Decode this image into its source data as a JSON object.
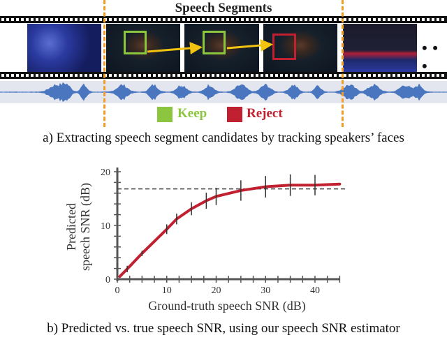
{
  "figure_a": {
    "title": "Speech Segments",
    "ellipsis": "• • •",
    "legend": [
      {
        "label": "Keep",
        "color": "#8cc63f"
      },
      {
        "label": "Reject",
        "color": "#c0202f"
      }
    ],
    "caption": "a) Extracting speech segment candidates by tracking speakers’ faces"
  },
  "figure_b": {
    "caption": "b) Predicted vs. true speech SNR, using our speech SNR estimator"
  },
  "chart_data": {
    "type": "line",
    "title": "",
    "xlabel": "Ground-truth speech SNR (dB)",
    "ylabel_line1": "Predicted",
    "ylabel_line2": "speech SNR (dB)",
    "xlim": [
      0,
      45
    ],
    "ylim": [
      0,
      20
    ],
    "xticks": [
      "0",
      "10",
      "20",
      "30",
      "40"
    ],
    "yticks": [
      "0",
      "10",
      "20"
    ],
    "series": [
      {
        "name": "Predicted SNR",
        "color": "#c0202f",
        "x": [
          0.5,
          2,
          5,
          10,
          12,
          15,
          18,
          20,
          25,
          30,
          35,
          40,
          45
        ],
        "y": [
          0.5,
          1.9,
          4.8,
          9.3,
          11.2,
          13.1,
          14.6,
          15.4,
          16.5,
          17.2,
          17.5,
          17.5,
          17.7
        ]
      }
    ],
    "error_bars": {
      "x": [
        2,
        5,
        10,
        12,
        15,
        18,
        20,
        25,
        30,
        35,
        40
      ],
      "half_width": [
        0.6,
        0.5,
        0.9,
        1.0,
        1.2,
        1.5,
        1.6,
        1.9,
        2.0,
        2.0,
        1.9
      ]
    },
    "reference_line": {
      "y": 16.8,
      "style": "dashed"
    },
    "grid": false
  }
}
